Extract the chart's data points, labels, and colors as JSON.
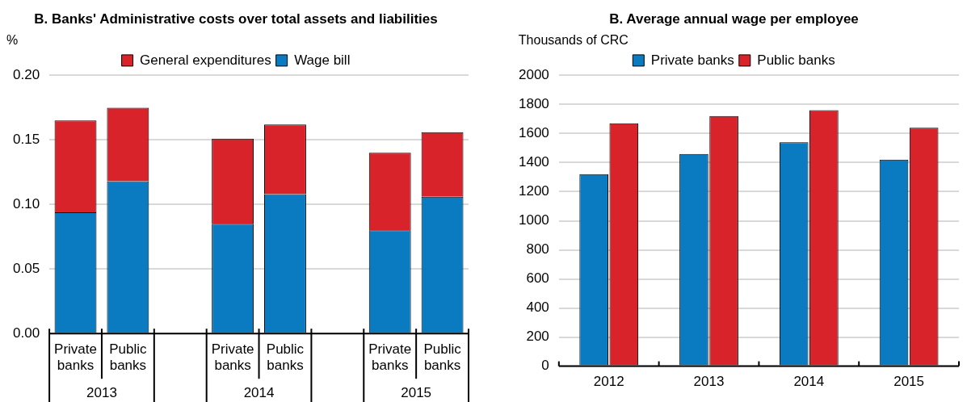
{
  "chart_data": [
    {
      "type": "bar",
      "title": "B. Banks' Administrative costs over total assets and liabilities",
      "ylabel": "%",
      "stacked": true,
      "categories": [
        "Private banks",
        "Public banks",
        null,
        "Private banks",
        "Public banks",
        null,
        "Private banks",
        "Public banks"
      ],
      "series": [
        {
          "name": "Wage bill",
          "color": "#0b7bc1",
          "values": [
            0.094,
            0.118,
            null,
            0.085,
            0.108,
            null,
            0.08,
            0.106
          ]
        },
        {
          "name": "General expenditures",
          "color": "#d9232a",
          "values": [
            0.071,
            0.057,
            null,
            0.066,
            0.054,
            null,
            0.06,
            0.05
          ]
        }
      ],
      "ylim": [
        0,
        0.2
      ],
      "yticks": [
        {
          "value": 0,
          "label": "0.00"
        },
        {
          "value": 0.05,
          "label": "0.05"
        },
        {
          "value": 0.1,
          "label": "0.10"
        },
        {
          "value": 0.15,
          "label": "0.15"
        },
        {
          "value": 0.2,
          "label": "0.20"
        }
      ],
      "annotations": [
        "2013",
        "2014",
        "2015"
      ],
      "grid": "y",
      "legend": "top"
    },
    {
      "type": "bar",
      "title": "B. Average annual wage per employee",
      "ylabel": "Thousands of CRC",
      "categories": [
        "2012",
        "2013",
        "2014",
        "2015"
      ],
      "series": [
        {
          "name": "Private banks",
          "color": "#0b7bc1",
          "values": [
            1320,
            1460,
            1540,
            1420
          ]
        },
        {
          "name": "Public banks",
          "color": "#d9232a",
          "values": [
            1670,
            1720,
            1760,
            1640
          ]
        }
      ],
      "ylim": [
        0,
        2000
      ],
      "yticks": [
        0,
        200,
        400,
        600,
        800,
        1000,
        1200,
        1400,
        1600,
        1800,
        2000
      ],
      "grid": "y",
      "legend": "top"
    }
  ]
}
